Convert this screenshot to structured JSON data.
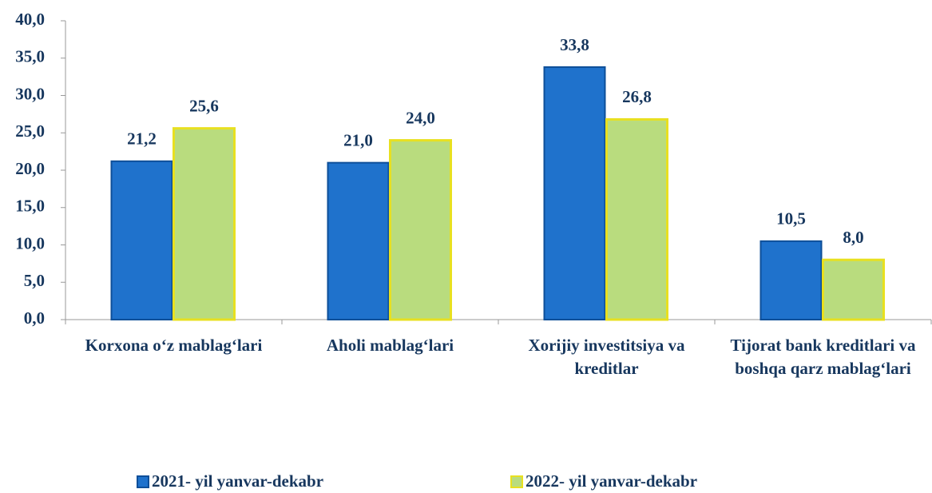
{
  "chart_data": {
    "type": "bar",
    "categories": [
      "Korxona o‘z mablag‘lari",
      "Aholi mablag‘lari",
      "Xorijiy investitsiya va kreditlar",
      "Tijorat bank kreditlari va boshqa qarz mablag‘lari"
    ],
    "series": [
      {
        "name": "2021- yil yanvar-dekabr",
        "color": "#1f72cc",
        "values": [
          21.2,
          21.0,
          33.8,
          10.5
        ],
        "value_labels": [
          "21,2",
          "21,0",
          "33,8",
          "10,5"
        ]
      },
      {
        "name": "2022- yil yanvar-dekabr",
        "color": "#b9dc7e",
        "values": [
          25.6,
          24.0,
          26.8,
          8.0
        ],
        "value_labels": [
          "25,6",
          "24,0",
          "26,8",
          "8,0"
        ]
      }
    ],
    "ylim": [
      0,
      40
    ],
    "yticks": [
      {
        "value": 0,
        "label": "0,0"
      },
      {
        "value": 5,
        "label": "5,0"
      },
      {
        "value": 10,
        "label": "10,0"
      },
      {
        "value": 15,
        "label": "15,0"
      },
      {
        "value": 20,
        "label": "20,0"
      },
      {
        "value": 25,
        "label": "25,0"
      },
      {
        "value": 30,
        "label": "30,0"
      },
      {
        "value": 35,
        "label": "35,0"
      },
      {
        "value": 40,
        "label": "40,0"
      }
    ],
    "grid": false
  }
}
